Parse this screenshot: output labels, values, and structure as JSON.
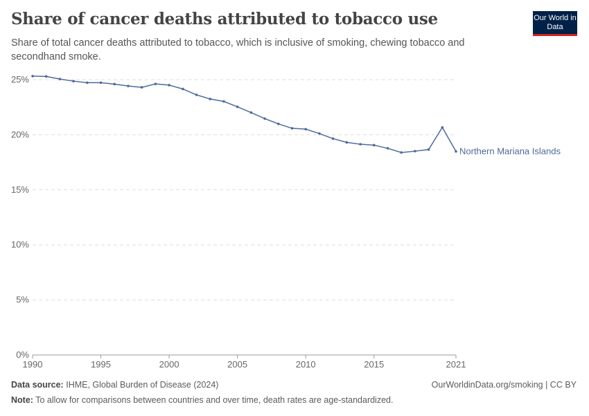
{
  "header": {
    "title": "Share of cancer deaths attributed to tobacco use",
    "subtitle": "Share of total cancer deaths attributed to tobacco, which is inclusive of smoking, chewing tobacco and secondhand smoke.",
    "logo_text": "Our World in Data"
  },
  "footer": {
    "source_label": "Data source:",
    "source": "IHME, Global Burden of Disease (2024)",
    "url": "OurWorldinData.org/smoking | CC BY",
    "note_label": "Note:",
    "note": "To allow for comparisons between countries and over time, death rates are age-standardized."
  },
  "chart_data": {
    "type": "line",
    "title": "Share of cancer deaths attributed to tobacco use",
    "xlim": [
      1990,
      2021
    ],
    "ylim": [
      0,
      25
    ],
    "x_ticks": [
      "1990",
      "1995",
      "2000",
      "2005",
      "2010",
      "2015",
      "2021"
    ],
    "y_ticks": [
      "0%",
      "5%",
      "10%",
      "15%",
      "20%",
      "25%"
    ],
    "grid": true,
    "legend": "right-end-label",
    "series": [
      {
        "name": "Northern Mariana Islands",
        "color": "#4c6a9c",
        "x": [
          1990,
          1991,
          1992,
          1993,
          1994,
          1995,
          1996,
          1997,
          1998,
          1999,
          2000,
          2001,
          2002,
          2003,
          2004,
          2005,
          2006,
          2007,
          2008,
          2009,
          2010,
          2011,
          2012,
          2013,
          2014,
          2015,
          2016,
          2017,
          2018,
          2019,
          2020,
          2021
        ],
        "values": [
          25.33,
          25.3,
          25.06,
          24.87,
          24.73,
          24.73,
          24.6,
          24.43,
          24.31,
          24.62,
          24.51,
          24.16,
          23.63,
          23.25,
          23.03,
          22.54,
          22.02,
          21.47,
          20.99,
          20.59,
          20.51,
          20.11,
          19.65,
          19.31,
          19.14,
          19.06,
          18.77,
          18.39,
          18.51,
          18.66,
          20.67,
          18.49
        ]
      }
    ]
  }
}
